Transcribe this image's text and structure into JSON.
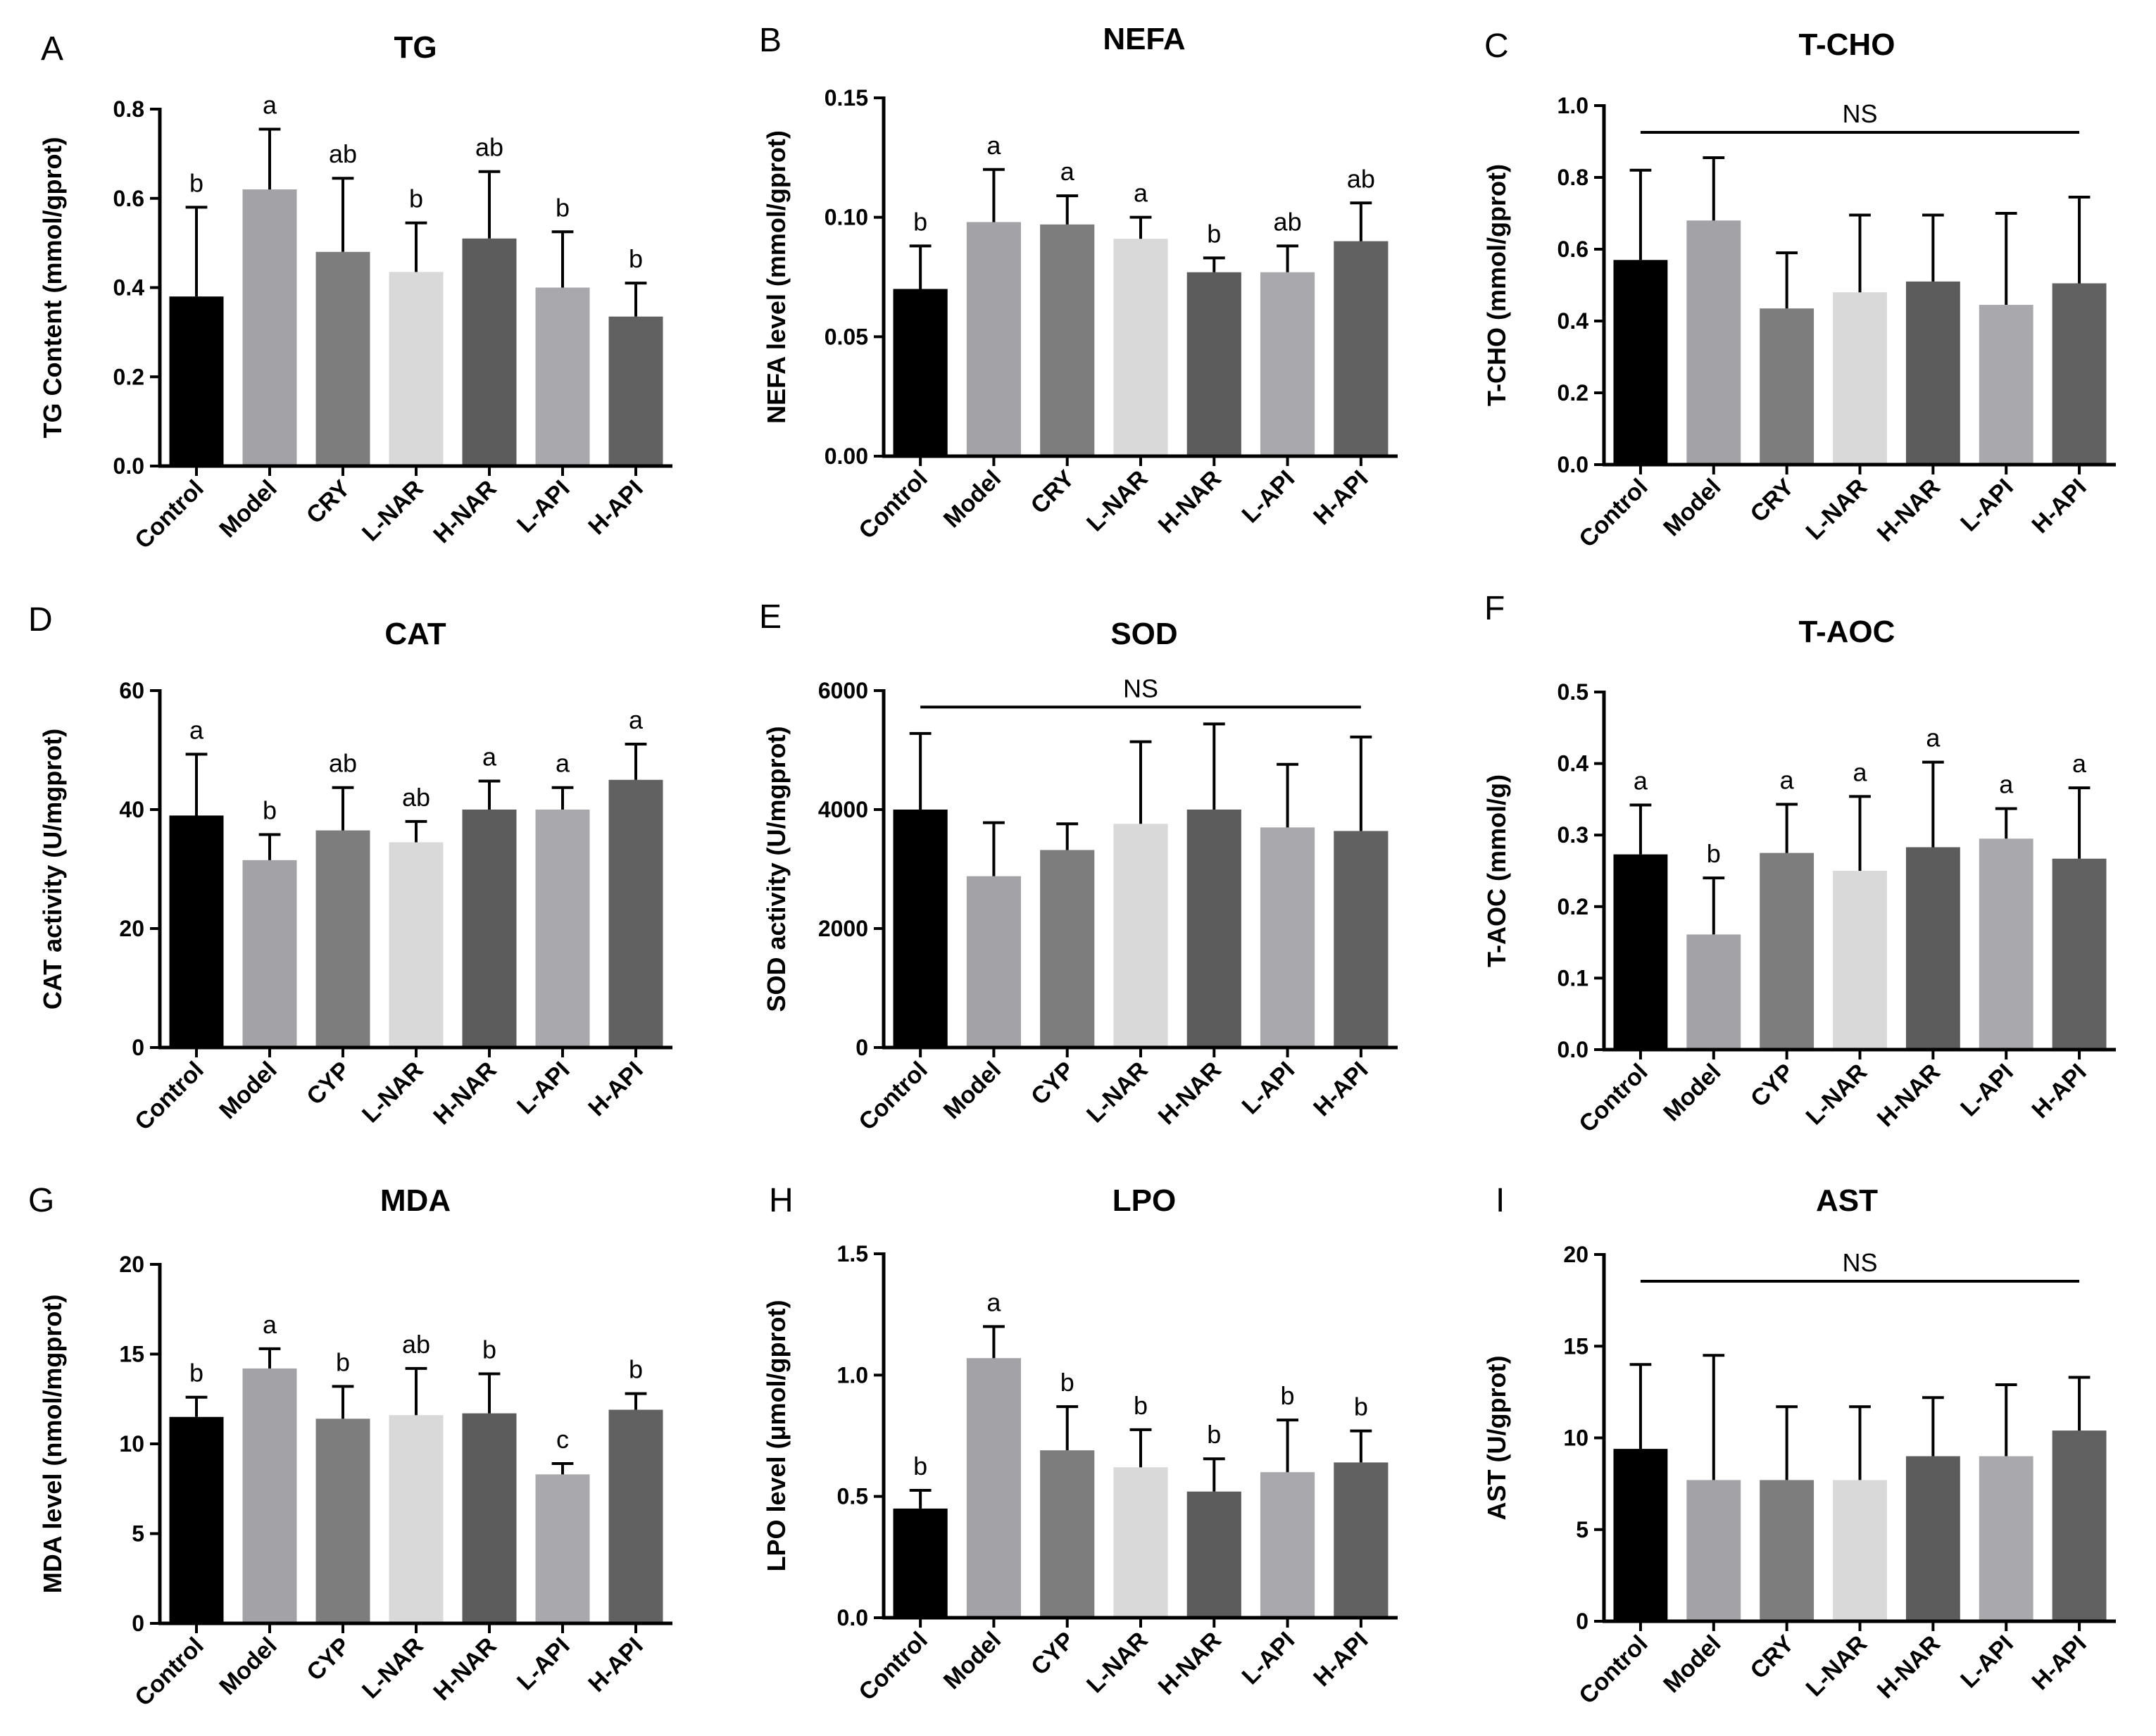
{
  "colors": {
    "bars": [
      "#000000",
      "#a2a2a7",
      "#7d7d7d",
      "#d9d9d9",
      "#5c5c5c",
      "#a9a9ad",
      "#616161"
    ],
    "axis": "#000000"
  },
  "chart_data": [
    {
      "panel": "A",
      "type": "bar",
      "title": "TG",
      "ylabel": "TG Content (mmol/gprot)",
      "categories": [
        "Control",
        "Model",
        "CRY",
        "L-NAR",
        "H-NAR",
        "L-API",
        "H-API"
      ],
      "values": [
        0.38,
        0.62,
        0.48,
        0.435,
        0.51,
        0.4,
        0.335
      ],
      "errors": [
        0.2,
        0.135,
        0.165,
        0.11,
        0.15,
        0.125,
        0.075
      ],
      "significance": [
        "b",
        "a",
        "ab",
        "b",
        "ab",
        "b",
        "b"
      ],
      "ylim": [
        0,
        0.8
      ],
      "yticks": [
        "0.0",
        "0.2",
        "0.4",
        "0.6",
        "0.8"
      ],
      "ns_label": ""
    },
    {
      "panel": "B",
      "type": "bar",
      "title": "NEFA",
      "ylabel": "NEFA level (mmol/gprot)",
      "categories": [
        "Control",
        "Model",
        "CRY",
        "L-NAR",
        "H-NAR",
        "L-API",
        "H-API"
      ],
      "values": [
        0.07,
        0.098,
        0.097,
        0.091,
        0.077,
        0.077,
        0.09
      ],
      "errors": [
        0.018,
        0.022,
        0.012,
        0.009,
        0.006,
        0.011,
        0.016
      ],
      "significance": [
        "b",
        "a",
        "a",
        "a",
        "b",
        "ab",
        "ab"
      ],
      "ylim": [
        0,
        0.15
      ],
      "yticks": [
        "0.00",
        "0.05",
        "0.10",
        "0.15"
      ],
      "ns_label": ""
    },
    {
      "panel": "C",
      "type": "bar",
      "title": "T-CHO",
      "ylabel": "T-CHO (mmol/gprot)",
      "categories": [
        "Control",
        "Model",
        "CRY",
        "L-NAR",
        "H-NAR",
        "L-API",
        "H-API"
      ],
      "values": [
        0.57,
        0.68,
        0.435,
        0.48,
        0.51,
        0.445,
        0.505
      ],
      "errors": [
        0.25,
        0.175,
        0.155,
        0.215,
        0.185,
        0.255,
        0.24
      ],
      "significance": [
        "",
        "",
        "",
        "",
        "",
        "",
        ""
      ],
      "ylim": [
        0,
        1.0
      ],
      "yticks": [
        "0.0",
        "0.2",
        "0.4",
        "0.6",
        "0.8",
        "1.0"
      ],
      "ns_label": "NS"
    },
    {
      "panel": "D",
      "type": "bar",
      "title": "CAT",
      "ylabel": "CAT activity (U/mgprot)",
      "categories": [
        "Control",
        "Model",
        "CYP",
        "L-NAR",
        "H-NAR",
        "L-API",
        "H-API"
      ],
      "values": [
        39,
        31.5,
        36.5,
        34.5,
        40,
        40,
        45
      ],
      "errors": [
        10.3,
        4.3,
        7.2,
        3.5,
        4.8,
        3.7,
        6.0
      ],
      "significance": [
        "a",
        "b",
        "ab",
        "ab",
        "a",
        "a",
        "a"
      ],
      "ylim": [
        0,
        60
      ],
      "yticks": [
        "0",
        "20",
        "40",
        "60"
      ],
      "ns_label": ""
    },
    {
      "panel": "E",
      "type": "bar",
      "title": "SOD",
      "ylabel": "SOD activity (U/mgprot)",
      "categories": [
        "Control",
        "Model",
        "CYP",
        "L-NAR",
        "H-NAR",
        "L-API",
        "H-API"
      ],
      "values": [
        4000,
        2880,
        3320,
        3760,
        4000,
        3700,
        3640
      ],
      "errors": [
        1280,
        900,
        440,
        1380,
        1440,
        1060,
        1580
      ],
      "significance": [
        "",
        "",
        "",
        "",
        "",
        "",
        ""
      ],
      "ylim": [
        0,
        6000
      ],
      "yticks": [
        "0",
        "2000",
        "4000",
        "6000"
      ],
      "ns_label": "NS"
    },
    {
      "panel": "F",
      "type": "bar",
      "title": "T-AOC",
      "ylabel": "T-AOC (mmol/g)",
      "categories": [
        "Control",
        "Model",
        "CYP",
        "L-NAR",
        "H-NAR",
        "L-API",
        "H-API"
      ],
      "values": [
        0.273,
        0.161,
        0.275,
        0.25,
        0.283,
        0.295,
        0.267
      ],
      "errors": [
        0.069,
        0.079,
        0.068,
        0.104,
        0.119,
        0.042,
        0.099
      ],
      "significance": [
        "a",
        "b",
        "a",
        "a",
        "a",
        "a",
        "a"
      ],
      "ylim": [
        0,
        0.5
      ],
      "yticks": [
        "0.0",
        "0.1",
        "0.2",
        "0.3",
        "0.4",
        "0.5"
      ],
      "ns_label": ""
    },
    {
      "panel": "G",
      "type": "bar",
      "title": "MDA",
      "ylabel": "MDA level (nmol/mgprot)",
      "categories": [
        "Control",
        "Model",
        "CYP",
        "L-NAR",
        "H-NAR",
        "L-API",
        "H-API"
      ],
      "values": [
        11.5,
        14.2,
        11.4,
        11.6,
        11.7,
        8.3,
        11.9
      ],
      "errors": [
        1.1,
        1.1,
        1.8,
        2.6,
        2.2,
        0.6,
        0.9
      ],
      "significance": [
        "b",
        "a",
        "b",
        "ab",
        "b",
        "c",
        "b"
      ],
      "ylim": [
        0,
        20
      ],
      "yticks": [
        "0",
        "5",
        "10",
        "15",
        "20"
      ],
      "ns_label": ""
    },
    {
      "panel": "H",
      "type": "bar",
      "title": "LPO",
      "ylabel": "LPO level (μmol/gprot)",
      "categories": [
        "Control",
        "Model",
        "CYP",
        "L-NAR",
        "H-NAR",
        "L-API",
        "H-API"
      ],
      "values": [
        0.45,
        1.07,
        0.69,
        0.62,
        0.52,
        0.6,
        0.64
      ],
      "errors": [
        0.075,
        0.13,
        0.18,
        0.155,
        0.135,
        0.215,
        0.13
      ],
      "significance": [
        "b",
        "a",
        "b",
        "b",
        "b",
        "b",
        "b"
      ],
      "ylim": [
        0,
        1.5
      ],
      "yticks": [
        "0.0",
        "0.5",
        "1.0",
        "1.5"
      ],
      "ns_label": ""
    },
    {
      "panel": "I",
      "type": "bar",
      "title": "AST",
      "ylabel": "AST (U/gprot)",
      "categories": [
        "Control",
        "Model",
        "CRY",
        "L-NAR",
        "H-NAR",
        "L-API",
        "H-API"
      ],
      "values": [
        9.4,
        7.7,
        7.7,
        7.7,
        9.0,
        9.0,
        10.4
      ],
      "errors": [
        4.6,
        6.8,
        4.0,
        4.0,
        3.2,
        3.9,
        2.9
      ],
      "significance": [
        "",
        "",
        "",
        "",
        "",
        "",
        ""
      ],
      "ylim": [
        0,
        20
      ],
      "yticks": [
        "0",
        "5",
        "10",
        "15",
        "20"
      ],
      "ns_label": "NS"
    }
  ]
}
